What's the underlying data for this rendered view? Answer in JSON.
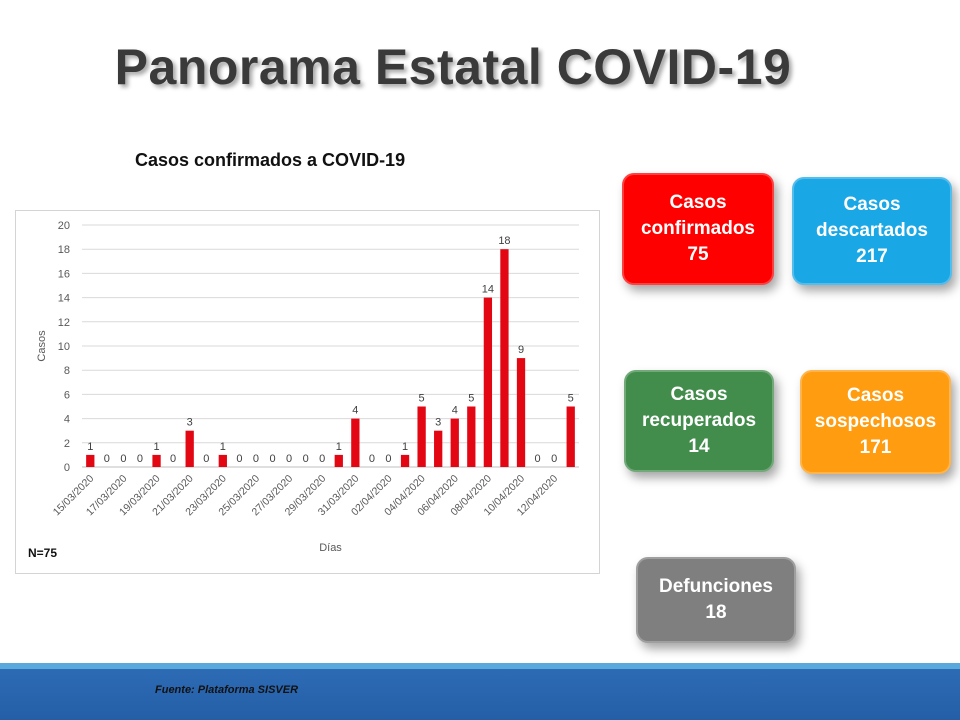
{
  "slide": {
    "title": "Panorama Estatal COVID-19",
    "source": "Fuente: Plataforma  SISVER"
  },
  "cards": {
    "confirmed": {
      "line1": "Casos",
      "line2": "confirmados",
      "value": "75",
      "color": "#ff0000"
    },
    "discarded": {
      "line1": "Casos",
      "line2": "descartados",
      "value": "217",
      "color": "#1aa7e6"
    },
    "recovered": {
      "line1": "Casos",
      "line2": "recuperados",
      "value": "14",
      "color": "#428c4c"
    },
    "suspected": {
      "line1": "Casos",
      "line2": "sospechosos",
      "value": "171",
      "color": "#ff9c0f"
    },
    "deaths": {
      "line1": "Defunciones",
      "value": "18",
      "color": "#7f7f7f"
    }
  },
  "chart_data": {
    "type": "bar",
    "title": "Casos confirmados a COVID-19",
    "xlabel": "Días",
    "ylabel": "Casos",
    "ylim": [
      0,
      20
    ],
    "yticks": [
      0,
      2,
      4,
      6,
      8,
      10,
      12,
      14,
      16,
      18,
      20
    ],
    "grid": true,
    "bar_color": "#e30613",
    "note": "N=75",
    "categories": [
      "15/03/2020",
      "16/03/2020",
      "17/03/2020",
      "18/03/2020",
      "19/03/2020",
      "20/03/2020",
      "21/03/2020",
      "22/03/2020",
      "23/03/2020",
      "24/03/2020",
      "25/03/2020",
      "26/03/2020",
      "27/03/2020",
      "28/03/2020",
      "29/03/2020",
      "30/03/2020",
      "31/03/2020",
      "01/04/2020",
      "02/04/2020",
      "03/04/2020",
      "04/04/2020",
      "05/04/2020",
      "06/04/2020",
      "07/04/2020",
      "08/04/2020",
      "09/04/2020",
      "10/04/2020",
      "11/04/2020",
      "12/04/2020",
      "13/04/2020"
    ],
    "tick_labels": [
      "15/03/2020",
      "",
      "17/03/2020",
      "",
      "19/03/2020",
      "",
      "21/03/2020",
      "",
      "23/03/2020",
      "",
      "25/03/2020",
      "",
      "27/03/2020",
      "",
      "29/03/2020",
      "",
      "31/03/2020",
      "",
      "02/04/2020",
      "",
      "04/04/2020",
      "",
      "06/04/2020",
      "",
      "08/04/2020",
      "",
      "10/04/2020",
      "",
      "12/04/2020",
      ""
    ],
    "values": [
      1,
      0,
      0,
      0,
      1,
      0,
      3,
      0,
      1,
      0,
      0,
      0,
      0,
      0,
      0,
      1,
      4,
      0,
      0,
      1,
      5,
      3,
      4,
      5,
      14,
      18,
      9,
      0,
      0,
      5
    ]
  }
}
